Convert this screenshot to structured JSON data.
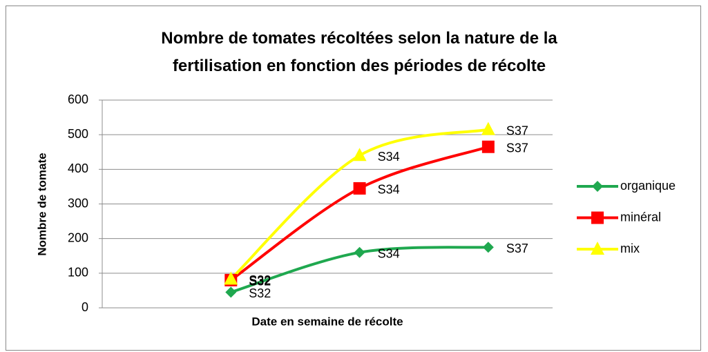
{
  "chart_data": {
    "type": "line",
    "title": "Nombre de tomates récoltées selon la nature de la fertilisation en fonction des périodes de récolte",
    "x_label": "Date en semaine de récolte",
    "y_label": "Nombre de tomate",
    "categories": [
      "S32",
      "S34",
      "S37"
    ],
    "series": [
      {
        "name": "organique",
        "color": "#1fa84f",
        "marker": "diamond",
        "values": [
          45,
          160,
          175
        ]
      },
      {
        "name": "minéral",
        "color": "#ff0000",
        "marker": "square",
        "values": [
          80,
          345,
          465
        ]
      },
      {
        "name": "mix",
        "color": "#ffff00",
        "marker": "triangle",
        "values": [
          83,
          440,
          515
        ]
      }
    ],
    "ylim": [
      0,
      600
    ],
    "yticks": [
      0,
      100,
      200,
      300,
      400,
      500,
      600
    ],
    "grid": true,
    "legend": "right",
    "smooth": true
  }
}
